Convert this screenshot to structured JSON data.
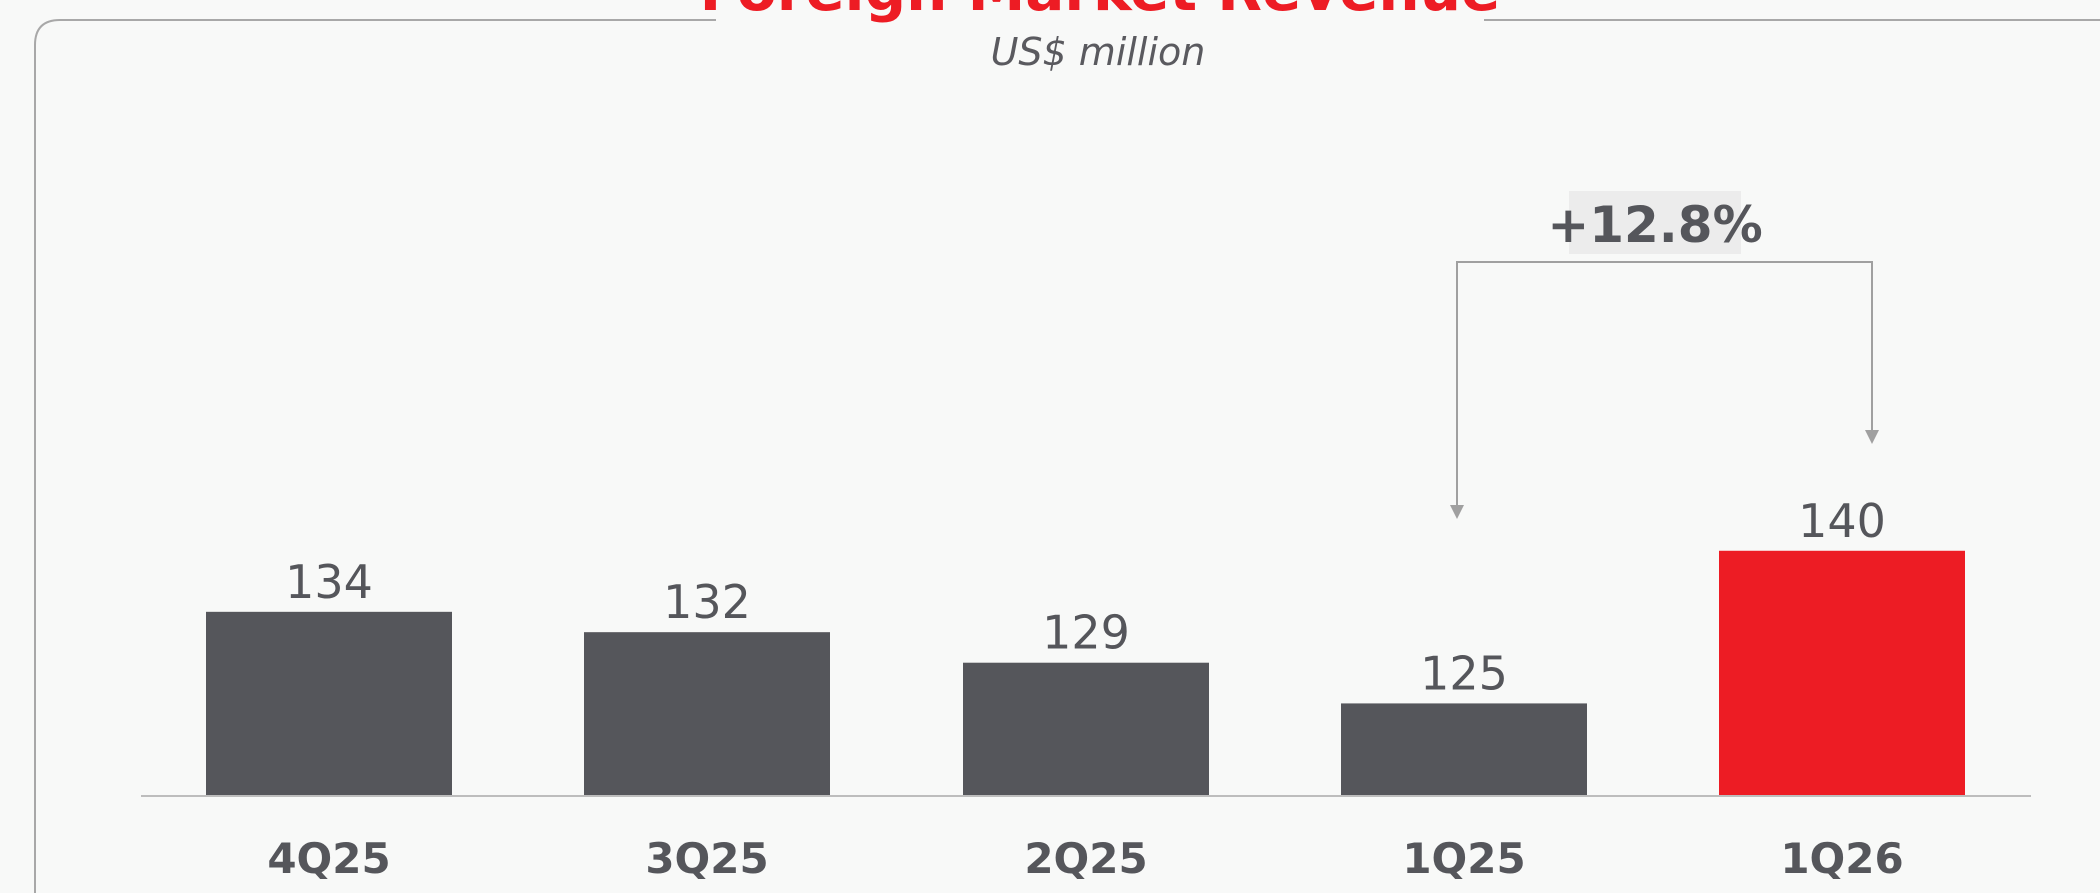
{
  "chart_data": {
    "type": "bar",
    "title": "Foreign Market Revenue",
    "subtitle": "US$ million",
    "categories": [
      "4Q25",
      "3Q25",
      "2Q25",
      "1Q25",
      "1Q26"
    ],
    "values": [
      134,
      132,
      129,
      125,
      140
    ],
    "colors": [
      "#55565b",
      "#55565b",
      "#55565b",
      "#55565b",
      "#ed1c24"
    ],
    "ylim": [
      116,
      150
    ],
    "annotation": "+12.8%"
  }
}
